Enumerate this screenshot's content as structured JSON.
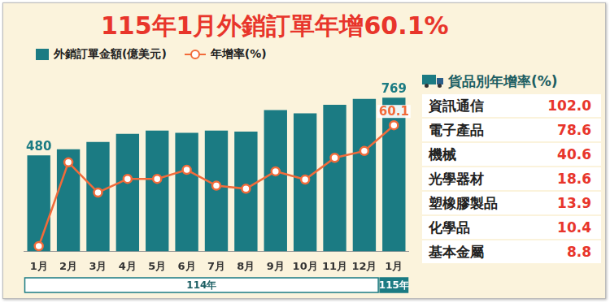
{
  "chart_data": {
    "type": "bar",
    "title": "115年1月外銷訂單年增60.1%",
    "categories": [
      "1月",
      "2月",
      "3月",
      "4月",
      "5月",
      "6月",
      "7月",
      "8月",
      "9月",
      "10月",
      "11月",
      "12月",
      "1月"
    ],
    "category_groups": [
      {
        "label": "114年",
        "span": 12
      },
      {
        "label": "115年",
        "span": 1
      }
    ],
    "series": [
      {
        "name": "外銷訂單金額(億美元)",
        "type": "bar",
        "color": "#1b7b83",
        "values": [
          480,
          511,
          547,
          588,
          604,
          593,
          604,
          599,
          707,
          691,
          733,
          763,
          769
        ],
        "value_labels": [
          "480",
          null,
          null,
          null,
          null,
          null,
          null,
          null,
          null,
          null,
          null,
          null,
          "769"
        ]
      },
      {
        "name": "年增率(%)",
        "type": "line",
        "axis": "y2",
        "color": "#f26b3a",
        "marker": "circle",
        "values": [
          -7.1,
          39.5,
          22.7,
          30.3,
          30.3,
          35.3,
          26.5,
          24.8,
          34.5,
          29.9,
          42.0,
          45.8,
          60.1
        ],
        "value_labels": [
          null,
          null,
          null,
          null,
          null,
          null,
          null,
          null,
          null,
          null,
          null,
          null,
          "60.1"
        ]
      }
    ],
    "ylim": [
      0,
      900
    ],
    "yticks": [
      0,
      300,
      600,
      900
    ],
    "y2lim": [
      -10,
      90
    ],
    "y2ticks": [
      -10,
      10,
      30,
      50,
      70,
      90
    ],
    "tick_labels": "x",
    "grid": false,
    "legend": "top"
  },
  "panel": {
    "title": "貨品別年增率(%)",
    "rows": [
      {
        "label": "資訊通信",
        "value": "102.0"
      },
      {
        "label": "電子產品",
        "value": "78.6"
      },
      {
        "label": "機械",
        "value": "40.6"
      },
      {
        "label": "光學器材",
        "value": "18.6"
      },
      {
        "label": "塑橡膠製品",
        "value": "13.9"
      },
      {
        "label": "化學品",
        "value": "10.4"
      },
      {
        "label": "基本金屬",
        "value": "8.8"
      }
    ]
  }
}
